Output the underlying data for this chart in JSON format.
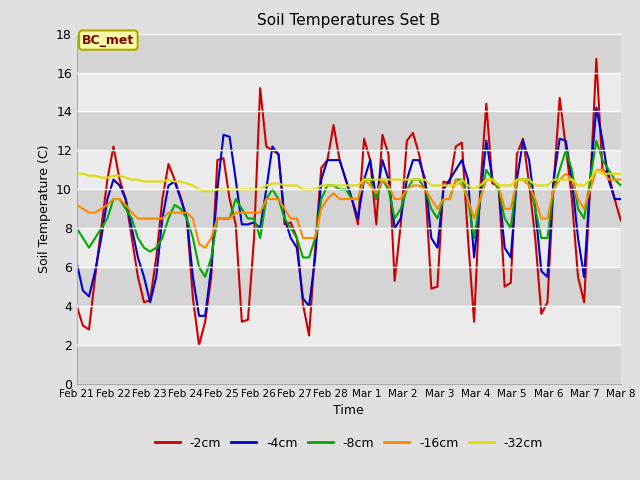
{
  "title": "Soil Temperatures Set B",
  "xlabel": "Time",
  "ylabel": "Soil Temperature (C)",
  "annotation": "BC_met",
  "ylim": [
    0,
    18
  ],
  "series": {
    "-2cm": {
      "color": "#cc0000",
      "values": [
        4.0,
        3.0,
        2.8,
        5.5,
        8.0,
        10.5,
        12.2,
        10.5,
        9.5,
        7.5,
        5.5,
        4.2,
        4.3,
        6.5,
        9.5,
        11.3,
        10.5,
        9.6,
        8.5,
        4.4,
        2.0,
        3.2,
        5.5,
        11.5,
        11.6,
        9.5,
        8.2,
        3.2,
        3.3,
        7.5,
        15.2,
        12.2,
        12.0,
        11.8,
        8.2,
        8.3,
        7.5,
        4.1,
        2.5,
        7.0,
        11.1,
        11.5,
        13.3,
        11.5,
        10.5,
        9.5,
        8.2,
        12.6,
        11.5,
        8.2,
        12.8,
        11.8,
        5.3,
        8.2,
        12.5,
        12.9,
        11.8,
        10.2,
        4.9,
        5.0,
        10.4,
        10.3,
        12.2,
        12.4,
        7.5,
        3.2,
        10.0,
        14.4,
        10.3,
        10.2,
        5.0,
        5.2,
        11.8,
        12.6,
        10.3,
        7.5,
        3.6,
        4.2,
        10.2,
        14.7,
        12.2,
        9.5,
        5.5,
        4.2,
        10.2,
        16.7,
        11.0,
        10.8,
        9.5,
        8.4
      ]
    },
    "-4cm": {
      "color": "#0000cc",
      "values": [
        6.2,
        4.8,
        4.5,
        5.8,
        7.5,
        9.5,
        10.5,
        10.2,
        9.5,
        8.0,
        6.5,
        5.5,
        4.2,
        5.5,
        8.5,
        10.2,
        10.4,
        9.5,
        8.5,
        5.5,
        3.5,
        3.5,
        6.0,
        10.0,
        12.8,
        12.7,
        10.5,
        8.2,
        8.2,
        8.3,
        8.0,
        10.0,
        12.2,
        11.8,
        8.5,
        7.5,
        7.0,
        4.4,
        4.0,
        6.5,
        10.5,
        11.5,
        11.5,
        11.5,
        10.5,
        9.5,
        8.5,
        10.5,
        11.5,
        9.5,
        11.5,
        10.5,
        8.0,
        8.5,
        10.5,
        11.5,
        11.5,
        10.5,
        7.5,
        7.0,
        10.0,
        10.5,
        11.0,
        11.5,
        10.5,
        6.5,
        9.5,
        12.5,
        10.5,
        10.2,
        7.0,
        6.5,
        10.5,
        12.5,
        11.5,
        9.0,
        5.8,
        5.5,
        10.5,
        12.6,
        12.5,
        10.5,
        7.5,
        5.5,
        10.5,
        14.2,
        12.5,
        10.5,
        9.5,
        9.5
      ]
    },
    "-8cm": {
      "color": "#00aa00",
      "values": [
        8.0,
        7.5,
        7.0,
        7.5,
        8.0,
        8.5,
        9.5,
        9.5,
        9.0,
        8.5,
        7.5,
        7.0,
        6.8,
        7.0,
        7.5,
        8.5,
        9.2,
        9.0,
        8.5,
        7.5,
        6.0,
        5.5,
        6.5,
        8.5,
        8.5,
        8.5,
        9.5,
        9.0,
        8.5,
        8.5,
        7.5,
        9.5,
        10.0,
        9.5,
        8.5,
        8.0,
        7.5,
        6.5,
        6.5,
        7.5,
        9.5,
        10.2,
        10.2,
        10.0,
        10.0,
        9.5,
        9.5,
        10.5,
        10.5,
        9.5,
        10.5,
        10.0,
        8.5,
        9.0,
        10.0,
        10.5,
        10.5,
        10.0,
        9.0,
        8.5,
        9.5,
        9.5,
        10.5,
        10.5,
        9.5,
        7.5,
        9.5,
        11.0,
        10.5,
        10.0,
        8.5,
        8.0,
        10.5,
        10.5,
        10.5,
        9.0,
        7.5,
        7.5,
        10.0,
        11.0,
        12.0,
        11.0,
        9.0,
        8.5,
        10.5,
        12.5,
        11.5,
        11.0,
        10.5,
        10.2
      ]
    },
    "-16cm": {
      "color": "#ff8800",
      "values": [
        9.2,
        9.0,
        8.8,
        8.8,
        9.0,
        9.2,
        9.5,
        9.5,
        9.2,
        8.8,
        8.5,
        8.5,
        8.5,
        8.5,
        8.5,
        8.8,
        8.8,
        8.8,
        8.8,
        8.5,
        7.2,
        7.0,
        7.5,
        8.5,
        8.5,
        8.5,
        8.8,
        8.8,
        8.8,
        8.8,
        8.8,
        9.5,
        9.5,
        9.5,
        9.0,
        8.5,
        8.5,
        7.5,
        7.5,
        7.5,
        9.0,
        9.5,
        9.8,
        9.5,
        9.5,
        9.5,
        9.5,
        10.5,
        10.2,
        9.8,
        10.5,
        10.2,
        9.5,
        9.5,
        10.0,
        10.2,
        10.2,
        10.0,
        9.5,
        9.0,
        9.5,
        9.5,
        10.5,
        10.2,
        9.5,
        8.5,
        9.5,
        10.5,
        10.5,
        10.2,
        9.0,
        9.0,
        10.5,
        10.5,
        10.2,
        9.5,
        8.5,
        8.5,
        10.0,
        10.5,
        10.8,
        10.5,
        9.5,
        9.0,
        10.0,
        11.0,
        11.0,
        10.5,
        10.5,
        10.5
      ]
    },
    "-32cm": {
      "color": "#dddd00",
      "values": [
        10.8,
        10.8,
        10.7,
        10.7,
        10.6,
        10.6,
        10.7,
        10.7,
        10.6,
        10.5,
        10.5,
        10.4,
        10.4,
        10.4,
        10.4,
        10.5,
        10.4,
        10.4,
        10.3,
        10.2,
        10.0,
        9.9,
        9.9,
        10.0,
        10.0,
        10.0,
        10.0,
        10.0,
        10.0,
        10.0,
        10.0,
        10.2,
        10.3,
        10.3,
        10.2,
        10.2,
        10.2,
        10.0,
        10.0,
        10.0,
        10.2,
        10.2,
        10.2,
        10.2,
        10.2,
        10.2,
        10.2,
        10.5,
        10.5,
        10.5,
        10.5,
        10.5,
        10.5,
        10.5,
        10.5,
        10.5,
        10.5,
        10.5,
        10.2,
        10.2,
        10.2,
        10.2,
        10.2,
        10.5,
        10.2,
        10.0,
        10.2,
        10.5,
        10.5,
        10.2,
        10.2,
        10.2,
        10.5,
        10.5,
        10.5,
        10.2,
        10.2,
        10.2,
        10.5,
        10.5,
        10.5,
        10.5,
        10.2,
        10.2,
        10.5,
        11.0,
        10.8,
        10.8,
        10.8,
        10.8
      ]
    }
  },
  "xtick_labels": [
    "Feb 21",
    "Feb 22",
    "Feb 23",
    "Feb 24",
    "Feb 25",
    "Feb 26",
    "Feb 27",
    "Feb 28",
    "Mar 1",
    "Mar 2",
    "Mar 3",
    "Mar 4",
    "Mar 5",
    "Mar 6",
    "Mar 7",
    "Mar 8"
  ],
  "ytick_labels": [
    0,
    2,
    4,
    6,
    8,
    10,
    12,
    14,
    16,
    18
  ],
  "legend_labels": [
    "-2cm",
    "-4cm",
    "-8cm",
    "-16cm",
    "-32cm"
  ],
  "legend_colors": [
    "#cc0000",
    "#0000cc",
    "#00aa00",
    "#ff8800",
    "#dddd00"
  ],
  "bg_color": "#e0e0e0",
  "plot_bg_color": "#e0e0e0",
  "band_light": "#ebebeb",
  "band_dark": "#d4d4d4",
  "grid_color": "#ffffff"
}
